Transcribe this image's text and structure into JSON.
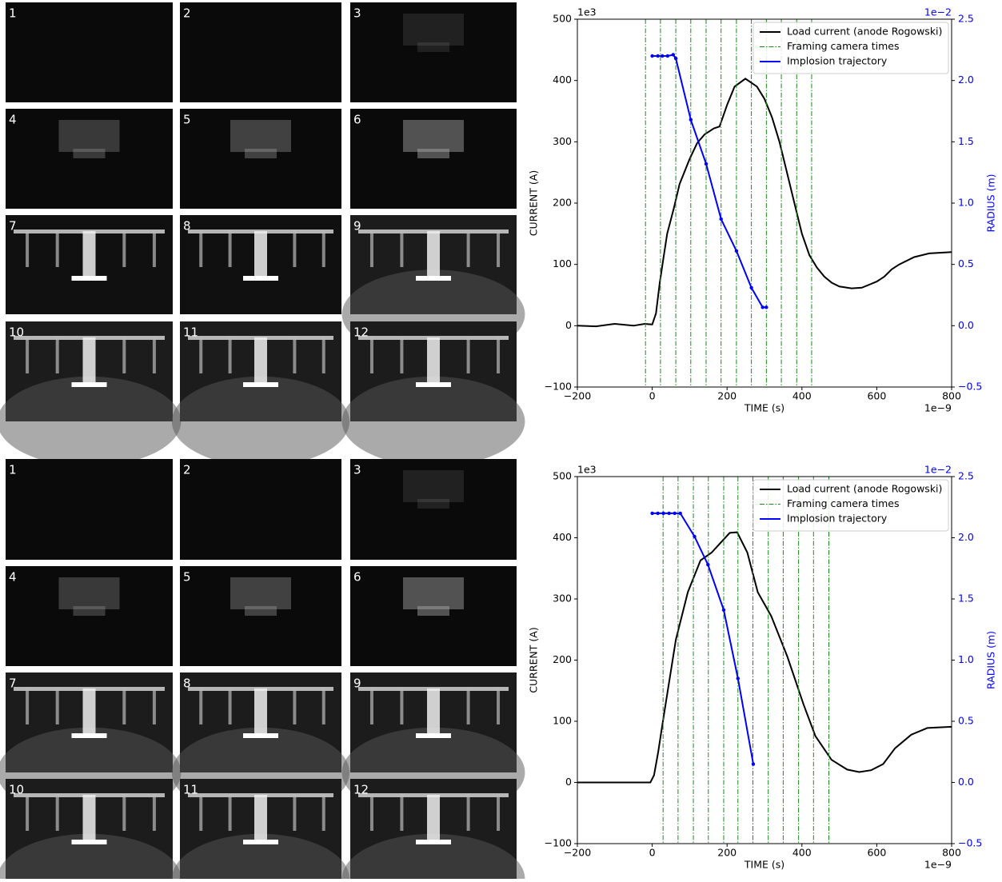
{
  "panels": [
    {
      "frame_labels": [
        "1",
        "2",
        "3",
        "4",
        "5",
        "6",
        "7",
        "8",
        "9",
        "10",
        "11",
        "12"
      ]
    },
    {
      "frame_labels": [
        "1",
        "2",
        "3",
        "4",
        "5",
        "6",
        "7",
        "8",
        "9",
        "10",
        "11",
        "12"
      ]
    }
  ],
  "chart_data": [
    {
      "type": "line",
      "xlabel": "TIME (s)",
      "ylabel": "CURRENT (A)",
      "y2label": "RADIUS (m)",
      "x_offset_label": "1e−9",
      "y_offset_label": "1e3",
      "y2_offset_label": "1e−2",
      "xlim": [
        -200,
        800
      ],
      "xticks": [
        {
          "value": -200,
          "label": "−200"
        },
        0,
        200,
        400,
        600,
        800
      ],
      "ylim": [
        -100,
        500
      ],
      "yticks": [
        {
          "value": -100,
          "label": "−100"
        },
        0,
        100,
        200,
        300,
        400,
        500
      ],
      "y2lim": [
        -0.5,
        2.5
      ],
      "y2ticks": [
        {
          "value": -0.5,
          "label": "−0.5"
        },
        {
          "value": 0,
          "label": "0.0"
        },
        0.5,
        {
          "value": 1,
          "label": "1.0"
        },
        1.5,
        {
          "value": 2,
          "label": "2.0"
        },
        2.5
      ],
      "y2_color": "#0000ff",
      "legend": "upper right",
      "series": [
        {
          "name": "Load current (anode Rogowski)",
          "color": "#000000",
          "type": "line",
          "x": [
            -200,
            -150,
            -100,
            -50,
            -20,
            0,
            10,
            20,
            30,
            40,
            58,
            73,
            100,
            120,
            140,
            165,
            180,
            200,
            220,
            249,
            280,
            300,
            320,
            340,
            360,
            380,
            400,
            420,
            440,
            460,
            480,
            500,
            533,
            560,
            580,
            600,
            620,
            640,
            660,
            700,
            740,
            800
          ],
          "values": [
            0,
            -1,
            3,
            0,
            3,
            2,
            20,
            70,
            110,
            150,
            192,
            231,
            272,
            298,
            312,
            322,
            325,
            360,
            390,
            403,
            390,
            370,
            340,
            300,
            250,
            200,
            150,
            115,
            95,
            80,
            70,
            64,
            61,
            62,
            67,
            72,
            80,
            92,
            100,
            112,
            118,
            120
          ]
        },
        {
          "name": "Framing camera times",
          "color": "#1a8a1a",
          "type": "vline",
          "x": [
            -18,
            22,
            63,
            103,
            144,
            184,
            225,
            265,
            305,
            345,
            386,
            426
          ]
        },
        {
          "name": "Implosion trajectory",
          "color": "#0000ff",
          "type": "line",
          "axis": "y2",
          "marker": true,
          "x": [
            0,
            15,
            27,
            41,
            56,
            63,
            103,
            144,
            184,
            225,
            265,
            295,
            305
          ],
          "values": [
            2.2,
            2.2,
            2.2,
            2.2,
            2.21,
            2.18,
            1.68,
            1.32,
            0.87,
            0.61,
            0.31,
            0.15,
            0.15
          ]
        }
      ]
    },
    {
      "type": "line",
      "xlabel": "TIME (s)",
      "ylabel": "CURRENT (A)",
      "y2label": "RADIUS (m)",
      "x_offset_label": "1e−9",
      "y_offset_label": "1e3",
      "y2_offset_label": "1e−2",
      "xlim": [
        -200,
        800
      ],
      "xticks": [
        {
          "value": -200,
          "label": "−200"
        },
        0,
        200,
        400,
        600,
        800
      ],
      "ylim": [
        -100,
        500
      ],
      "yticks": [
        {
          "value": -100,
          "label": "−100"
        },
        0,
        100,
        200,
        300,
        400,
        500
      ],
      "y2lim": [
        -0.5,
        2.5
      ],
      "y2ticks": [
        {
          "value": -0.5,
          "label": "−0.5"
        },
        {
          "value": 0,
          "label": "0.0"
        },
        0.5,
        {
          "value": 1,
          "label": "1.0"
        },
        1.5,
        {
          "value": 2,
          "label": "2.0"
        },
        2.5
      ],
      "y2_color": "#0000ff",
      "legend": "upper right",
      "series": [
        {
          "name": "Load current (anode Rogowski)",
          "color": "#000000",
          "type": "line",
          "x": [
            -200,
            -100,
            -5,
            5,
            16,
            29,
            63,
            95,
            129,
            159,
            180,
            207,
            227,
            254,
            282,
            318,
            361,
            404,
            436,
            479,
            521,
            553,
            585,
            617,
            649,
            692,
            735,
            800
          ],
          "values": [
            0,
            0,
            0,
            12,
            50,
            102,
            233,
            311,
            363,
            376,
            390,
            408,
            409,
            376,
            311,
            272,
            206,
            128,
            76,
            37,
            21,
            17,
            20,
            30,
            56,
            78,
            89,
            91
          ]
        },
        {
          "name": "Framing camera times",
          "color": "#1a8a1a",
          "type": "vline",
          "x": [
            29,
            69,
            110,
            150,
            191,
            229,
            269,
            310,
            350,
            391,
            431,
            472
          ]
        },
        {
          "name": "Implosion trajectory",
          "color": "#0000ff",
          "type": "line",
          "axis": "y2",
          "marker": true,
          "x": [
            0,
            15,
            30,
            45,
            60,
            75,
            113,
            149,
            191,
            229,
            270
          ],
          "values": [
            2.2,
            2.2,
            2.2,
            2.2,
            2.2,
            2.2,
            2.01,
            1.78,
            1.41,
            0.85,
            0.15
          ]
        }
      ]
    }
  ]
}
